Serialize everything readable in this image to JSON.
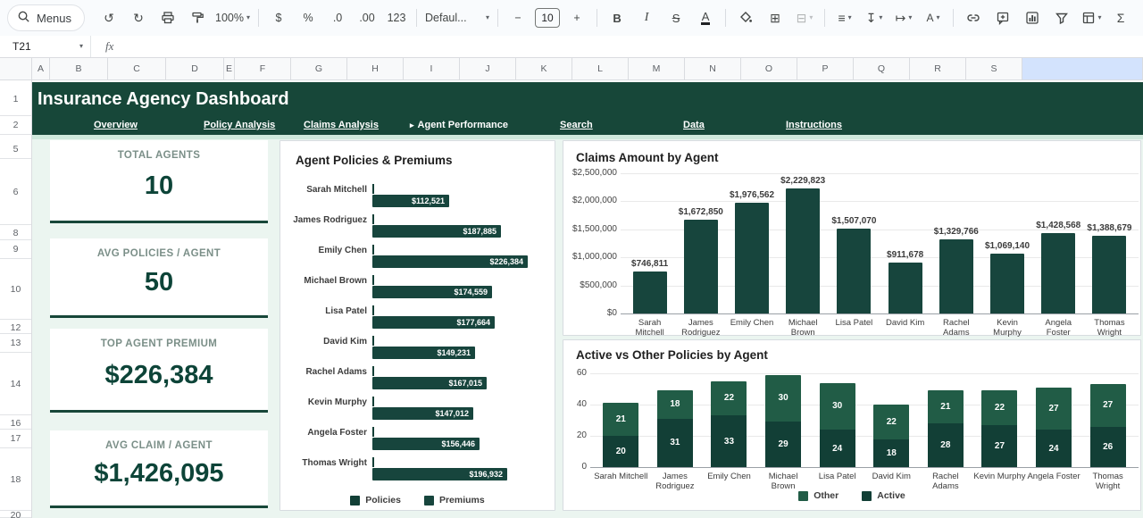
{
  "toolbar": {
    "menus": "Menus",
    "zoom": "100%",
    "caret": "▾",
    "undo": "↺",
    "redo": "↻",
    "currency": "$",
    "percent": "%",
    "dec_dec": ".0",
    "dec_inc": ".00",
    "more_formats": "123",
    "font": "Defaul...",
    "size_minus": "−",
    "size": "10",
    "size_plus": "+",
    "bold": "B",
    "italic": "I",
    "strikethrough": "S",
    "text_color": "A",
    "borders": "⊞",
    "merge": "⊟",
    "align": "≡",
    "valign": "↧",
    "wrap": "↦",
    "rotation": "A",
    "sigma": "Σ"
  },
  "formula_bar": {
    "cell_ref": "T21",
    "fx": "fx"
  },
  "grid": {
    "columns": [
      "A",
      "B",
      "C",
      "D",
      "E",
      "F",
      "G",
      "H",
      "I",
      "J",
      "K",
      "L",
      "M",
      "N",
      "O",
      "P",
      "Q",
      "R",
      "S"
    ],
    "rows": [
      "1",
      "2",
      "5",
      "6",
      "8",
      "9",
      "10",
      "12",
      "13",
      "14",
      "16",
      "17",
      "18",
      "20"
    ]
  },
  "dashboard": {
    "title": "Insurance Agency Dashboard",
    "active_marker": "▸",
    "nav": [
      {
        "label": "Overview"
      },
      {
        "label": "Policy Analysis"
      },
      {
        "label": "Claims Analysis"
      },
      {
        "label": "Agent Performance",
        "active": true
      },
      {
        "label": "Search"
      },
      {
        "label": "Data"
      },
      {
        "label": "Instructions"
      }
    ],
    "kpis": [
      {
        "label": "TOTAL AGENTS",
        "value": "10"
      },
      {
        "label": "AVG POLICIES / AGENT",
        "value": "50"
      },
      {
        "label": "TOP AGENT PREMIUM",
        "value": "$226,384"
      },
      {
        "label": "AVG CLAIM / AGENT",
        "value": "$1,426,095"
      }
    ]
  },
  "colors": {
    "header_green": "#174739",
    "bar_dark": "#17453d",
    "bar_darker": "#123f36",
    "bar_light": "#215c46",
    "mint": "#ebf5f0",
    "mint_strip": "#cfe9dc",
    "selected_column": "#d3e3fd"
  },
  "chart_data": [
    {
      "type": "bar",
      "orientation": "horizontal",
      "title": "Agent Policies & Premiums",
      "categories": [
        "Sarah Mitchell",
        "James Rodriguez",
        "Emily Chen",
        "Michael Brown",
        "Lisa Patel",
        "David Kim",
        "Rachel Adams",
        "Kevin Murphy",
        "Angela Foster",
        "Thomas Wright"
      ],
      "series": [
        {
          "name": "Policies",
          "color": "#123f36",
          "values": [
            41,
            49,
            55,
            59,
            54,
            40,
            49,
            49,
            51,
            53
          ]
        },
        {
          "name": "Premiums",
          "color": "#17453d",
          "values": [
            112521,
            187885,
            226384,
            174559,
            177664,
            149231,
            167015,
            147012,
            156446,
            196932
          ]
        }
      ],
      "data_label_format": "$#,##0",
      "legend": [
        "Policies",
        "Premiums"
      ],
      "legend_position": "bottom",
      "grid": false
    },
    {
      "type": "bar",
      "title": "Claims Amount by Agent",
      "categories": [
        "Sarah Mitchell",
        "James Rodriguez",
        "Emily Chen",
        "Michael Brown",
        "Lisa Patel",
        "David Kim",
        "Rachel Adams",
        "Kevin Murphy",
        "Angela Foster",
        "Thomas Wright"
      ],
      "values": [
        746811,
        1672850,
        1976562,
        2229823,
        1507070,
        911678,
        1329766,
        1069140,
        1428568,
        1388679
      ],
      "bar_color": "#17453d",
      "ylim": [
        0,
        2500000
      ],
      "yticks": [
        0,
        500000,
        1000000,
        1500000,
        2000000,
        2500000
      ],
      "ytick_format": "$#,##0",
      "data_labels": true,
      "grid": true,
      "legend_position": "none"
    },
    {
      "type": "bar",
      "stacked": true,
      "title": "Active vs Other Policies by Agent",
      "categories": [
        "Sarah Mitchell",
        "James Rodriguez",
        "Emily Chen",
        "Michael Brown",
        "Lisa Patel",
        "David Kim",
        "Rachel Adams",
        "Kevin Murphy",
        "Angela Foster",
        "Thomas Wright"
      ],
      "series": [
        {
          "name": "Active",
          "color": "#123f36",
          "values": [
            20,
            31,
            33,
            29,
            24,
            18,
            28,
            27,
            24,
            26
          ]
        },
        {
          "name": "Other",
          "color": "#215c46",
          "values": [
            21,
            18,
            22,
            30,
            30,
            22,
            21,
            22,
            27,
            27
          ]
        }
      ],
      "ylim": [
        0,
        60
      ],
      "yticks": [
        0,
        20,
        40,
        60
      ],
      "legend": [
        "Other",
        "Active"
      ],
      "legend_position": "bottom",
      "grid": true
    }
  ]
}
